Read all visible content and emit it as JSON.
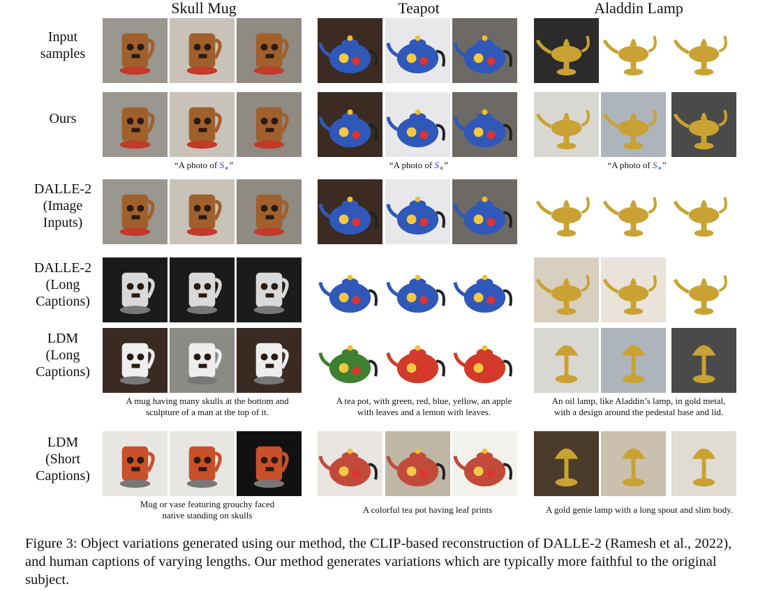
{
  "columns": [
    "Skull Mug",
    "Teapot",
    "Aladdin Lamp"
  ],
  "rows": [
    {
      "label": [
        "Input",
        "samples"
      ]
    },
    {
      "label": [
        "Ours"
      ]
    },
    {
      "label": [
        "DALLE-2",
        "(Image",
        "Inputs)"
      ]
    },
    {
      "label": [
        "DALLE-2",
        "(Long",
        "Captions)"
      ]
    },
    {
      "label": [
        "LDM",
        "(Long",
        "Captions)"
      ]
    },
    {
      "label": [
        "LDM",
        "(Short",
        "Captions)"
      ]
    }
  ],
  "captions": {
    "ours_prefix": "“A photo of ",
    "ours_symbol": "S",
    "ours_subscript": "∗",
    "ours_suffix": "”",
    "ldm_long": [
      [
        "A mug having many skulls at the bottom and",
        "sculpture of a man at the top of it."
      ],
      [
        "A tea pot, with green, red, blue, yellow, an apple",
        "with leaves and a lemon with leaves."
      ],
      [
        "An oil lamp, like Aladdin’s lamp, in gold metal,",
        "with a design around the pedestal base and lid."
      ]
    ],
    "ldm_short": [
      [
        "Mug or vase featuring grouchy faced",
        "native standing on skulls"
      ],
      [
        "A colorful tea pot having leaf prints"
      ],
      [
        "A gold genie lamp with a long spout and slim body."
      ]
    ]
  },
  "figure_caption": "Figure 3: Object variations generated using our method, the CLIP-based reconstruction of DALLE-2 (Ramesh et al., 2022), and human captions of varying lengths. Our method generates variations which are typically more faithful to the original subject.",
  "colors": {
    "mug_brown": "#a0602c",
    "teapot_blue": "#2f58b8",
    "teapot_red": "#d23a2a",
    "lamp_gold": "#c9a233",
    "dark_bg": "#222222",
    "symbol_blue": "#2a3fd4"
  }
}
